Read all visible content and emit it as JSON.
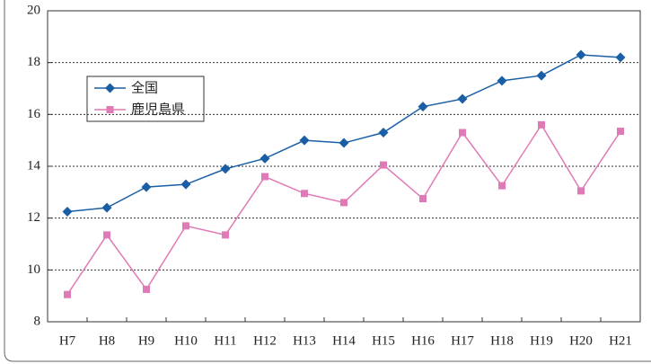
{
  "chart_data": {
    "type": "line",
    "categories": [
      "H7",
      "H8",
      "H9",
      "H10",
      "H11",
      "H12",
      "H13",
      "H14",
      "H15",
      "H16",
      "H17",
      "H18",
      "H19",
      "H20",
      "H21"
    ],
    "series": [
      {
        "name": "全国",
        "color": "#1a5fa6",
        "marker": "diamond",
        "values": [
          12.25,
          12.4,
          13.2,
          13.3,
          13.9,
          14.3,
          15.0,
          14.9,
          15.3,
          16.3,
          16.6,
          17.3,
          17.5,
          18.3,
          18.2
        ]
      },
      {
        "name": "鹿児島県",
        "color": "#e07ab6",
        "marker": "square",
        "values": [
          9.05,
          11.35,
          9.25,
          11.7,
          11.35,
          13.6,
          12.95,
          12.6,
          14.05,
          12.75,
          15.3,
          13.25,
          15.6,
          13.05,
          15.35
        ]
      }
    ],
    "ylim": [
      8,
      20
    ],
    "yticks": [
      8,
      10,
      12,
      14,
      16,
      18,
      20
    ],
    "grid": true,
    "legend": "upper left"
  }
}
